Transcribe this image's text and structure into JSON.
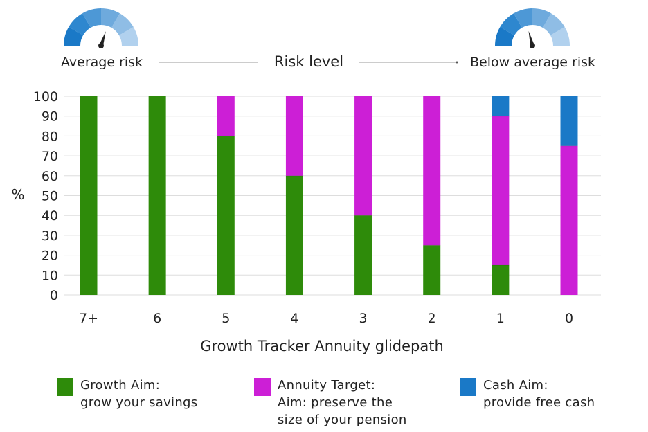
{
  "header": {
    "left_label": "Average risk",
    "center_label": "Risk level",
    "right_label": "Below average risk"
  },
  "gauge": {
    "colors": [
      "#1a79c7",
      "#2e87cf",
      "#4d98d6",
      "#6eaadd",
      "#8fbde5",
      "#b1d1ee"
    ],
    "needle_color": "#222222",
    "left_needle_level": 0.6,
    "right_needle_level": 0.42,
    "icon": "gauge-icon"
  },
  "colors": {
    "growth": "#2e8b0a",
    "annuity": "#cc1fd6",
    "cash": "#1a79c7",
    "grid": "#dddddd"
  },
  "chart_data": {
    "type": "bar",
    "stacked": true,
    "title": "",
    "xlabel": "Growth Tracker Annuity glidepath",
    "ylabel": "%",
    "ylim": [
      0,
      100
    ],
    "yticks": [
      0,
      10,
      20,
      30,
      40,
      50,
      60,
      70,
      80,
      90,
      100
    ],
    "categories": [
      "7+",
      "6",
      "5",
      "4",
      "3",
      "2",
      "1",
      "0"
    ],
    "grid": true,
    "legend_position": "bottom",
    "series": [
      {
        "key": "growth",
        "values": [
          100,
          100,
          80,
          60,
          40,
          25,
          15,
          0
        ]
      },
      {
        "key": "annuity",
        "values": [
          0,
          0,
          20,
          40,
          60,
          75,
          75,
          75
        ]
      },
      {
        "key": "cash",
        "values": [
          0,
          0,
          0,
          0,
          0,
          0,
          10,
          25
        ]
      }
    ]
  },
  "legend": [
    {
      "key": "growth",
      "lines": [
        "Growth Aim:",
        "grow your savings"
      ]
    },
    {
      "key": "annuity",
      "lines": [
        "Annuity Target:",
        "Aim: preserve the",
        "size of your pension"
      ]
    },
    {
      "key": "cash",
      "lines": [
        "Cash Aim:",
        "provide free cash"
      ]
    }
  ]
}
